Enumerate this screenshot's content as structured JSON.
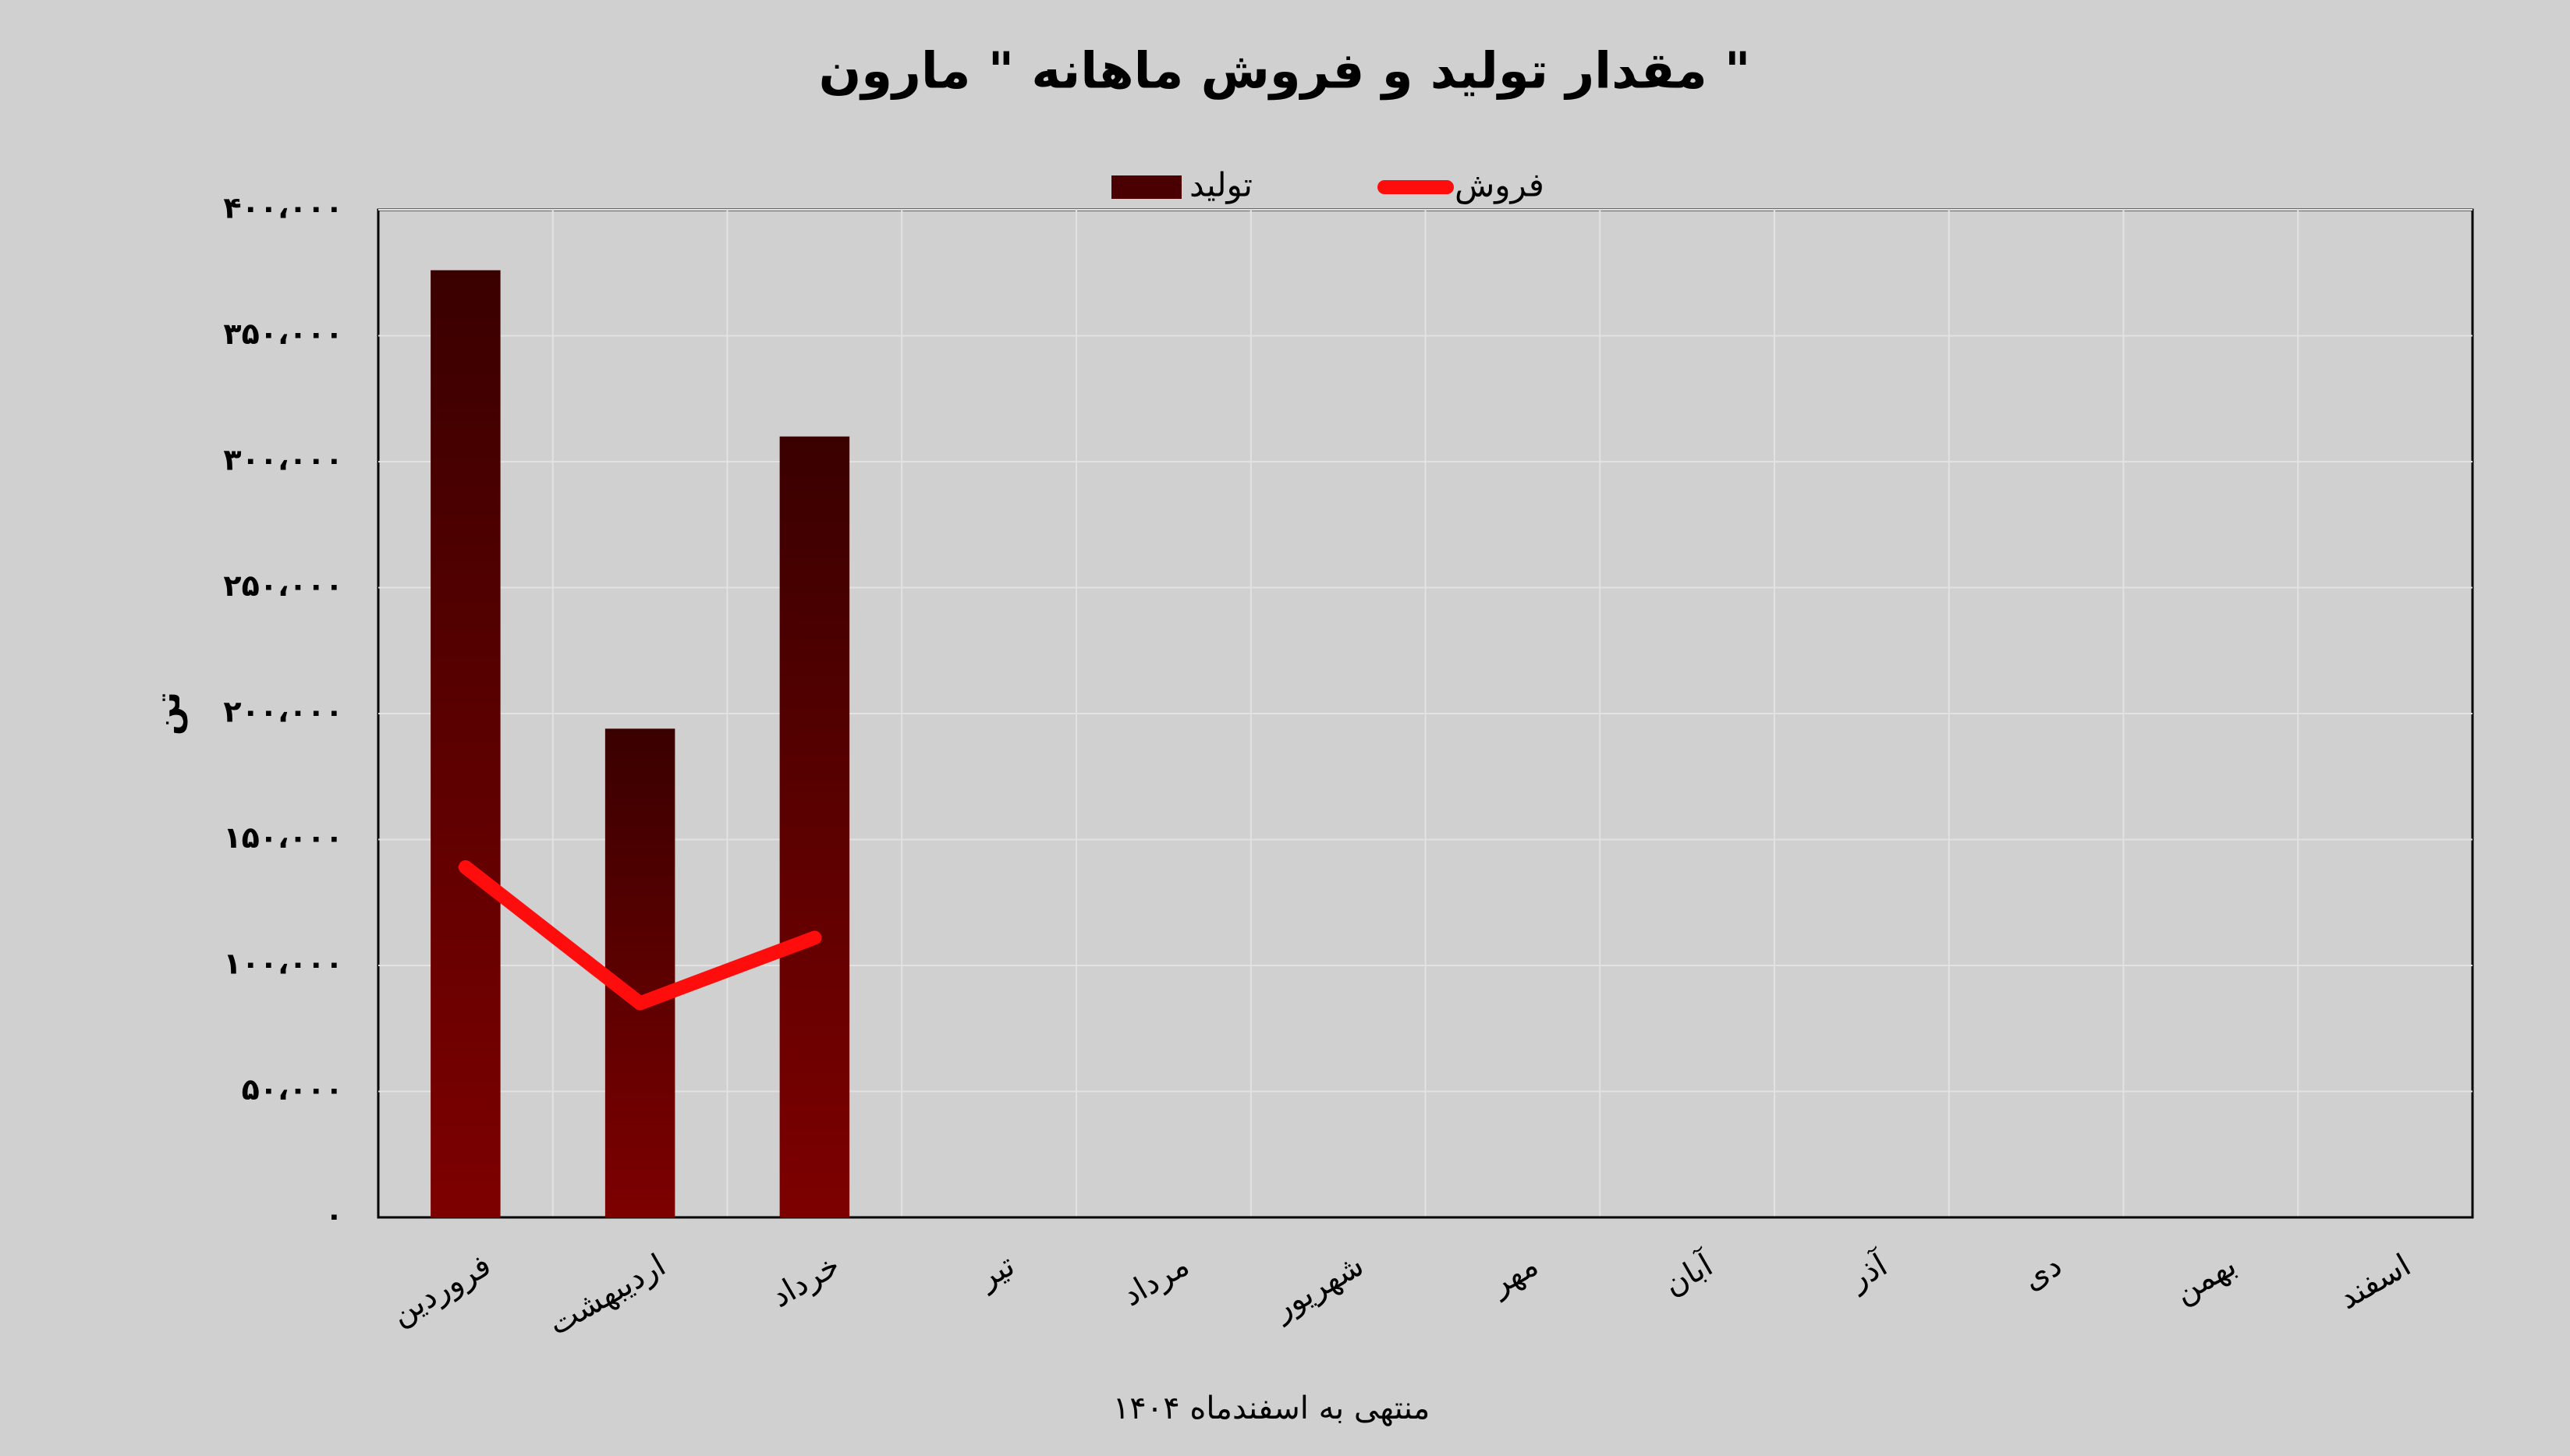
{
  "chart_data": {
    "type": "bar-line",
    "title": "مقدار تولید و فروش ماهانه \" مارون \"",
    "y_label": "تن",
    "x_label": "منتهی به اسفندماه ۱۴۰۴",
    "categories": [
      "فروردین",
      "اردیبهشت",
      "خرداد",
      "تیر",
      "مرداد",
      "شهریور",
      "مهر",
      "آبان",
      "آذر",
      "دی",
      "بهمن",
      "اسفند"
    ],
    "series": [
      {
        "name": "تولید",
        "type": "bar",
        "color": "#6a0000",
        "values": [
          376000,
          194000,
          310000,
          null,
          null,
          null,
          null,
          null,
          null,
          null,
          null,
          null
        ]
      },
      {
        "name": "فروش",
        "type": "line",
        "color": "#ff0d0d",
        "values": [
          139000,
          85000,
          111000,
          null,
          null,
          null,
          null,
          null,
          null,
          null,
          null,
          null
        ]
      }
    ],
    "ylim": [
      0,
      400000
    ],
    "yticks": [
      {
        "value": 0,
        "label": "۰"
      },
      {
        "value": 50000,
        "label": "۵۰،۰۰۰"
      },
      {
        "value": 100000,
        "label": "۱۰۰،۰۰۰"
      },
      {
        "value": 150000,
        "label": "۱۵۰،۰۰۰"
      },
      {
        "value": 200000,
        "label": "۲۰۰،۰۰۰"
      },
      {
        "value": 250000,
        "label": "۲۵۰،۰۰۰"
      },
      {
        "value": 300000,
        "label": "۳۰۰،۰۰۰"
      },
      {
        "value": 350000,
        "label": "۳۵۰،۰۰۰"
      },
      {
        "value": 400000,
        "label": "۴۰۰،۰۰۰"
      }
    ],
    "grid": true,
    "legend": "top"
  }
}
